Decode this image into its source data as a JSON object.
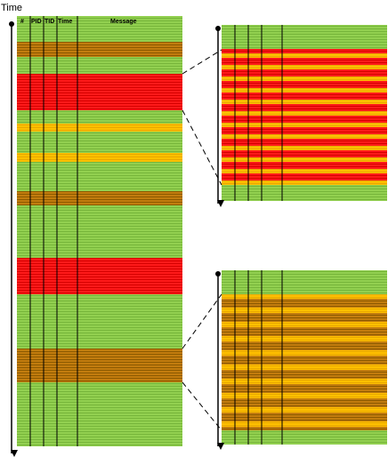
{
  "axis_label": "Time",
  "columns": [
    "#",
    "PID",
    "TID",
    "Time",
    "Message"
  ]
}
